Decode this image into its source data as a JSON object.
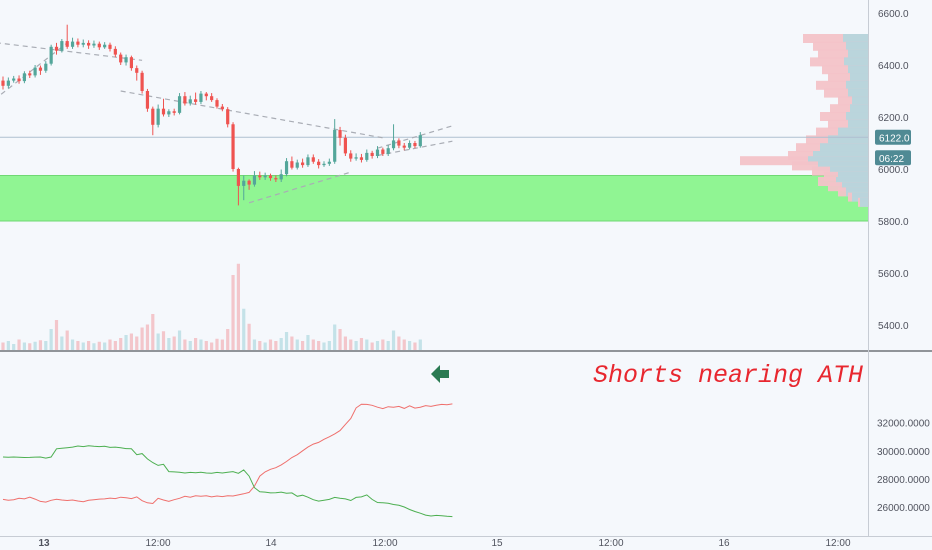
{
  "chart_data": [
    {
      "type": "candlestick",
      "title": "",
      "xlabel": "",
      "ylabel": "",
      "ylim": [
        5300,
        6640
      ],
      "y_ticks": [
        "6600.0",
        "6400.0",
        "6200.0",
        "6000.0",
        "5800.0",
        "5600.0",
        "5400.0"
      ],
      "y_tick_values": [
        6600,
        6400,
        6200,
        6000,
        5800,
        5600,
        5400
      ],
      "price_label": "6122.0",
      "price_value": 6122,
      "countdown_label": "06:22",
      "support_zone": [
        5800,
        5975
      ],
      "candles": [
        [
          6340,
          6320,
          6356,
          6306
        ],
        [
          6320,
          6340,
          6352,
          6310
        ],
        [
          6340,
          6348,
          6358,
          6332
        ],
        [
          6348,
          6338,
          6360,
          6328
        ],
        [
          6338,
          6368,
          6376,
          6330
        ],
        [
          6368,
          6360,
          6378,
          6350
        ],
        [
          6360,
          6390,
          6400,
          6352
        ],
        [
          6390,
          6378,
          6398,
          6362
        ],
        [
          6378,
          6405,
          6415,
          6370
        ],
        [
          6405,
          6470,
          6478,
          6398
        ],
        [
          6470,
          6455,
          6485,
          6440
        ],
        [
          6455,
          6492,
          6500,
          6448
        ],
        [
          6492,
          6470,
          6555,
          6462
        ],
        [
          6470,
          6490,
          6505,
          6462
        ],
        [
          6490,
          6478,
          6502,
          6468
        ],
        [
          6478,
          6485,
          6498,
          6468
        ],
        [
          6485,
          6475,
          6495,
          6462
        ],
        [
          6475,
          6482,
          6494,
          6466
        ],
        [
          6482,
          6468,
          6490,
          6458
        ],
        [
          6468,
          6478,
          6488,
          6462
        ],
        [
          6478,
          6462,
          6486,
          6452
        ],
        [
          6462,
          6440,
          6472,
          6430
        ],
        [
          6440,
          6410,
          6448,
          6400
        ],
        [
          6410,
          6430,
          6440,
          6398
        ],
        [
          6430,
          6388,
          6436,
          6378
        ],
        [
          6388,
          6370,
          6398,
          6340
        ],
        [
          6370,
          6300,
          6378,
          6290
        ],
        [
          6300,
          6232,
          6308,
          6220
        ],
        [
          6232,
          6170,
          6240,
          6130
        ],
        [
          6170,
          6232,
          6248,
          6160
        ],
        [
          6232,
          6210,
          6270,
          6202
        ],
        [
          6210,
          6222,
          6230,
          6200
        ],
        [
          6222,
          6216,
          6232,
          6206
        ],
        [
          6216,
          6280,
          6292,
          6210
        ],
        [
          6280,
          6252,
          6296,
          6244
        ],
        [
          6252,
          6268,
          6282,
          6244
        ],
        [
          6268,
          6258,
          6294,
          6248
        ],
        [
          6258,
          6290,
          6300,
          6250
        ],
        [
          6290,
          6280,
          6296,
          6264
        ],
        [
          6280,
          6265,
          6292,
          6258
        ],
        [
          6265,
          6240,
          6272,
          6232
        ],
        [
          6240,
          6230,
          6250,
          6222
        ],
        [
          6230,
          6172,
          6238,
          6160
        ],
        [
          6172,
          6000,
          6180,
          5990
        ],
        [
          6000,
          5935,
          6005,
          5860
        ],
        [
          5935,
          5955,
          5975,
          5880
        ],
        [
          5955,
          5940,
          5960,
          5920
        ],
        [
          5940,
          5975,
          5992,
          5932
        ],
        [
          5975,
          5968,
          5990,
          5958
        ],
        [
          5968,
          5975,
          5986,
          5958
        ],
        [
          5975,
          5965,
          5982,
          5955
        ],
        [
          5965,
          5960,
          5975,
          5950
        ],
        [
          5960,
          5980,
          5998,
          5950
        ],
        [
          5980,
          6030,
          6042,
          5972
        ],
        [
          6030,
          6005,
          6048,
          5998
        ],
        [
          6005,
          6025,
          6036,
          5998
        ],
        [
          6025,
          6015,
          6040,
          6005
        ],
        [
          6015,
          6045,
          6056,
          6008
        ],
        [
          6045,
          6028,
          6056,
          6020
        ],
        [
          6028,
          6015,
          6038,
          6002
        ],
        [
          6015,
          6020,
          6030,
          6008
        ],
        [
          6020,
          6028,
          6040,
          6012
        ],
        [
          6028,
          6150,
          6192,
          6020
        ],
        [
          6150,
          6120,
          6162,
          6090
        ],
        [
          6120,
          6060,
          6132,
          6050
        ],
        [
          6060,
          6040,
          6072,
          6028
        ],
        [
          6040,
          6045,
          6060,
          6032
        ],
        [
          6045,
          6035,
          6058,
          6025
        ],
        [
          6035,
          6062,
          6075,
          6028
        ],
        [
          6062,
          6050,
          6070,
          6040
        ],
        [
          6050,
          6075,
          6088,
          6042
        ],
        [
          6075,
          6058,
          6082,
          6050
        ],
        [
          6058,
          6080,
          6092,
          6050
        ],
        [
          6080,
          6110,
          6172,
          6072
        ],
        [
          6110,
          6090,
          6118,
          6080
        ],
        [
          6090,
          6082,
          6100,
          6072
        ],
        [
          6082,
          6100,
          6110,
          6075
        ],
        [
          6100,
          6088,
          6108,
          6080
        ],
        [
          6088,
          6130,
          6142,
          6082
        ]
      ],
      "volumes": [
        10,
        12,
        8,
        14,
        10,
        9,
        11,
        13,
        12,
        28,
        40,
        18,
        26,
        14,
        12,
        10,
        12,
        9,
        11,
        10,
        14,
        12,
        16,
        20,
        22,
        18,
        30,
        34,
        48,
        22,
        25,
        16,
        18,
        26,
        14,
        12,
        16,
        14,
        12,
        10,
        15,
        14,
        28,
        100,
        115,
        55,
        35,
        14,
        12,
        10,
        14,
        12,
        16,
        24,
        18,
        14,
        12,
        20,
        14,
        12,
        10,
        12,
        34,
        28,
        18,
        14,
        12,
        16,
        14,
        10,
        12,
        14,
        12,
        26,
        18,
        14,
        12,
        10,
        14
      ],
      "volume_up": "#c4e2e8",
      "volume_down": "#f3c6cb",
      "up_color": "#53a69a",
      "down_color": "#ef5350",
      "volume_profile": [
        {
          "price": 6500,
          "sell": 65,
          "buy": 25
        },
        {
          "price": 6470,
          "sell": 55,
          "buy": 22
        },
        {
          "price": 6440,
          "sell": 50,
          "buy": 20
        },
        {
          "price": 6410,
          "sell": 58,
          "buy": 24
        },
        {
          "price": 6380,
          "sell": 46,
          "buy": 20
        },
        {
          "price": 6350,
          "sell": 40,
          "buy": 18
        },
        {
          "price": 6320,
          "sell": 52,
          "buy": 22
        },
        {
          "price": 6290,
          "sell": 44,
          "buy": 20
        },
        {
          "price": 6260,
          "sell": 30,
          "buy": 16
        },
        {
          "price": 6230,
          "sell": 38,
          "buy": 18
        },
        {
          "price": 6200,
          "sell": 48,
          "buy": 22
        },
        {
          "price": 6170,
          "sell": 40,
          "buy": 20
        },
        {
          "price": 6140,
          "sell": 52,
          "buy": 30
        },
        {
          "price": 6110,
          "sell": 62,
          "buy": 40
        },
        {
          "price": 6080,
          "sell": 72,
          "buy": 48
        },
        {
          "price": 6050,
          "sell": 80,
          "buy": 55
        },
        {
          "price": 6030,
          "sell": 128,
          "buy": 60
        },
        {
          "price": 6010,
          "sell": 76,
          "buy": 50
        },
        {
          "price": 5990,
          "sell": 56,
          "buy": 38
        },
        {
          "price": 5970,
          "sell": 44,
          "buy": 30
        },
        {
          "price": 5950,
          "sell": 50,
          "buy": 32
        },
        {
          "price": 5930,
          "sell": 40,
          "buy": 26
        },
        {
          "price": 5910,
          "sell": 30,
          "buy": 22
        },
        {
          "price": 5890,
          "sell": 20,
          "buy": 16
        },
        {
          "price": 5870,
          "sell": 10,
          "buy": 8
        }
      ],
      "trendlines": [
        {
          "points": [
            [
              -3,
              6490
            ],
            [
              26,
              6418
            ]
          ]
        },
        {
          "points": [
            [
              -3,
              6245
            ],
            [
              12,
              6485
            ]
          ]
        },
        {
          "points": [
            [
              22,
              6300
            ],
            [
              71,
              6120
            ]
          ]
        },
        {
          "points": [
            [
              46,
              5870
            ],
            [
              65,
              5988
            ]
          ]
        },
        {
          "points": [
            [
              70,
              6080
            ],
            [
              84,
              6166
            ]
          ]
        },
        {
          "points": [
            [
              70,
              6052
            ],
            [
              84,
              6107
            ]
          ]
        }
      ]
    },
    {
      "type": "line",
      "title": "",
      "ylim": [
        25000,
        33500
      ],
      "y_ticks": [
        "32000.0000",
        "30000.0000",
        "28000.0000",
        "26000.0000"
      ],
      "y_tick_values": [
        32000,
        30000,
        28000,
        26000
      ],
      "annotation": "Shorts nearing ATH",
      "series": [
        {
          "color": "#ef6f6c",
          "values": [
            26540,
            26480,
            26520,
            26620,
            26580,
            26700,
            26560,
            26400,
            26350,
            26480,
            26550,
            26500,
            26460,
            26500,
            26430,
            26380,
            26480,
            26520,
            26560,
            26580,
            26630,
            26600,
            26700,
            26660,
            26600,
            26720,
            26450,
            26300,
            26250,
            26620,
            26500,
            26400,
            26520,
            26620,
            26760,
            26700,
            26800,
            26760,
            26800,
            26720,
            26780,
            26740,
            26800,
            26780,
            26860,
            26940,
            27040,
            27480,
            28200,
            28500,
            28680,
            28800,
            29000,
            29240,
            29520,
            29720,
            30000,
            30260,
            30480,
            30600,
            30820,
            31000,
            31200,
            31440,
            31880,
            32300,
            33050,
            33320,
            33300,
            33240,
            33100,
            33000,
            33140,
            33100,
            33160,
            33020,
            33200,
            33040,
            33100,
            33220,
            33160,
            33240,
            33300,
            33280,
            33340
          ]
        },
        {
          "color": "#4caf50",
          "values": [
            29560,
            29540,
            29560,
            29540,
            29520,
            29530,
            29550,
            29560,
            29480,
            29560,
            30140,
            30180,
            30220,
            30260,
            30340,
            30300,
            30360,
            30320,
            30300,
            30320,
            30240,
            30260,
            30220,
            30160,
            30140,
            29720,
            29800,
            29420,
            29160,
            28960,
            29040,
            28520,
            28500,
            28480,
            28420,
            28460,
            28440,
            28480,
            28420,
            28400,
            28460,
            28420,
            28480,
            28520,
            28400,
            28640,
            28200,
            27380,
            27080,
            27060,
            27000,
            27020,
            27060,
            26980,
            27000,
            26760,
            26840,
            26700,
            26520,
            26420,
            26480,
            26540,
            26680,
            26620,
            26580,
            26460,
            26680,
            26720,
            26860,
            26540,
            26320,
            26300,
            26260,
            26180,
            26120,
            26000,
            25820,
            25680,
            25560,
            25420,
            25360,
            25400,
            25380,
            25340,
            25320
          ]
        }
      ]
    }
  ],
  "time_axis": {
    "labels": [
      "13",
      "12:00",
      "14",
      "12:00",
      "15",
      "12:00",
      "16",
      "12:00"
    ],
    "bold": [
      true,
      false,
      false,
      false,
      false,
      false,
      false,
      false
    ]
  },
  "colors": {
    "background": "#f5f8fc",
    "support": "#90f593",
    "support_edge": "#6fd873",
    "price_line": "#afbfd0",
    "trendline": "#a9adb5",
    "arrow": "#2a7a52",
    "badge": "#4f8a94",
    "profile_sell": "#f3c3c8",
    "profile_buy": "#b4d6de"
  },
  "icons": {
    "arrow": "arrow-left-icon"
  }
}
